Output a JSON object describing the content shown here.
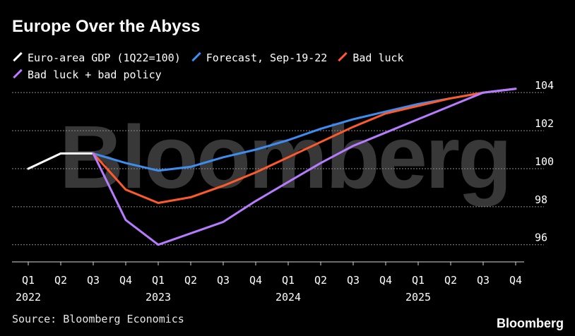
{
  "title": "Europe Over the Abyss",
  "source": "Source: Bloomberg Economics",
  "brand": "Bloomberg",
  "watermark": "Bloomberg",
  "colors": {
    "background": "#000000",
    "gridline": "#8c8c8c",
    "text": "#ffffff"
  },
  "chart_data": {
    "type": "line",
    "x": [
      "Q1 2022",
      "Q2 2022",
      "Q3 2022",
      "Q4 2022",
      "Q1 2023",
      "Q2 2023",
      "Q3 2023",
      "Q4 2023",
      "Q1 2024",
      "Q2 2024",
      "Q3 2024",
      "Q4 2024",
      "Q1 2025",
      "Q2 2025",
      "Q3 2025",
      "Q4 2025"
    ],
    "tick_quarters": [
      "Q1",
      "Q2",
      "Q3",
      "Q4",
      "Q1",
      "Q2",
      "Q3",
      "Q4",
      "Q1",
      "Q2",
      "Q3",
      "Q4",
      "Q1",
      "Q2",
      "Q3",
      "Q4"
    ],
    "year_labels": [
      {
        "index": 0,
        "label": "2022"
      },
      {
        "index": 4,
        "label": "2023"
      },
      {
        "index": 8,
        "label": "2024"
      },
      {
        "index": 12,
        "label": "2025"
      }
    ],
    "yticks": [
      96,
      98,
      100,
      102,
      104
    ],
    "ylim": [
      95.1,
      104.6
    ],
    "grid": true,
    "legend_position": "top",
    "series": [
      {
        "name": "Euro-area GDP (1Q22=100)",
        "color": "#ffffff",
        "values": [
          100.0,
          100.8,
          100.8,
          null,
          null,
          null,
          null,
          null,
          null,
          null,
          null,
          null,
          null,
          null,
          null,
          null
        ]
      },
      {
        "name": "Forecast, Sep-19-22",
        "color": "#3d8ef0",
        "values": [
          null,
          null,
          100.8,
          100.3,
          99.9,
          100.1,
          100.6,
          101.0,
          101.5,
          102.1,
          102.6,
          103.0,
          103.4,
          103.7,
          104.0,
          104.2
        ]
      },
      {
        "name": "Bad luck",
        "color": "#ff5a2b",
        "values": [
          null,
          null,
          100.8,
          98.9,
          98.2,
          98.5,
          99.1,
          99.8,
          100.6,
          101.4,
          102.2,
          102.9,
          103.3,
          103.7,
          104.0,
          104.2
        ]
      },
      {
        "name": "Bad luck + bad policy",
        "color": "#b77bff",
        "values": [
          null,
          null,
          100.8,
          97.3,
          96.0,
          96.6,
          97.2,
          98.3,
          99.3,
          100.3,
          101.2,
          101.9,
          102.6,
          103.3,
          104.0,
          104.2
        ]
      }
    ]
  }
}
